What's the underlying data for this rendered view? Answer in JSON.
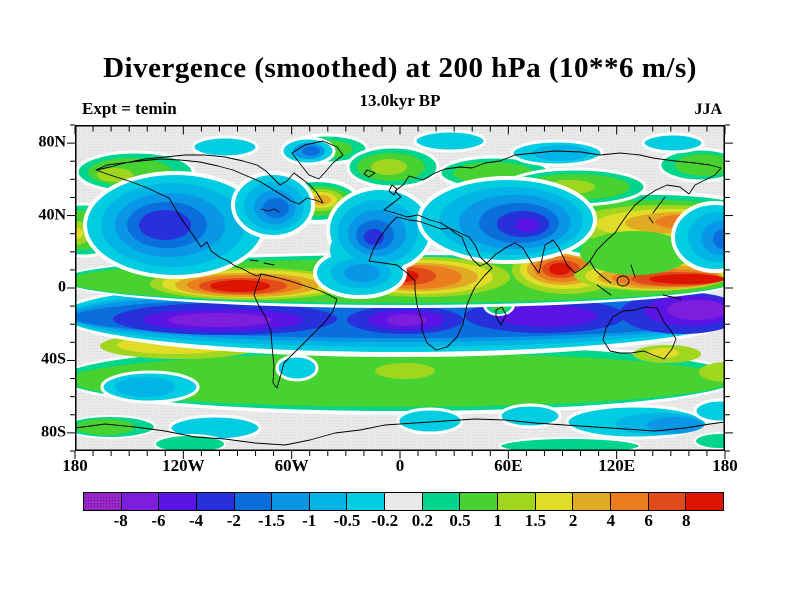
{
  "header": {
    "title": "Divergence (smoothed) at 200 hPa (10**6 m/s)",
    "subtitle": "13.0kyr BP",
    "experiment_label": "Expt = temin",
    "season_label": "JJA"
  },
  "axes": {
    "lon_labels": [
      "180",
      "120W",
      "60W",
      "0",
      "60E",
      "120E",
      "180"
    ],
    "lat_labels": [
      "80N",
      "40N",
      "0",
      "40S",
      "80S"
    ],
    "lat_label_values": [
      80,
      40,
      0,
      -40,
      -80
    ]
  },
  "colorbar": {
    "labels": [
      "-8",
      "-6",
      "-4",
      "-2",
      "-1.5",
      "-1",
      "-0.5",
      "-0.2",
      "0.2",
      "0.5",
      "1",
      "1.5",
      "2",
      "4",
      "6",
      "8"
    ],
    "colors": [
      "#9A28C8",
      "#7C1EDC",
      "#5A14E6",
      "#2830DC",
      "#0A6EDC",
      "#0A96E6",
      "#00B4E6",
      "#00CDE1",
      "#E8E8E8",
      "#00D58C",
      "#48D232",
      "#A0D71E",
      "#E1DC28",
      "#E1AA23",
      "#EB7D1E",
      "#E14B19",
      "#DC1400"
    ]
  },
  "chart_data": {
    "type": "heatmap",
    "subtype": "filled-contour world map",
    "title": "Divergence (smoothed) at 200 hPa (10**6 m/s)",
    "subtitle": "13.0kyr BP",
    "experiment": "temin",
    "season": "JJA",
    "variable": "divergence at 200 hPa",
    "units_note": "10**6 m/s",
    "level_boundaries": [
      -8,
      -6,
      -4,
      -2,
      -1.5,
      -1,
      -0.5,
      -0.2,
      0.2,
      0.5,
      1,
      1.5,
      2,
      4,
      6,
      8
    ],
    "palette": [
      "#9A28C8",
      "#7C1EDC",
      "#5A14E6",
      "#2830DC",
      "#0A6EDC",
      "#0A96E6",
      "#00B4E6",
      "#00CDE1",
      "#E8E8E8",
      "#00D58C",
      "#48D232",
      "#A0D71E",
      "#E1DC28",
      "#E1AA23",
      "#EB7D1E",
      "#E14B19",
      "#DC1400"
    ],
    "near_zero_band_color": "#E8E8E8",
    "lon_range": [
      -180,
      180
    ],
    "lat_range": [
      -90,
      90
    ],
    "lon_tick_labels": [
      "180",
      "120W",
      "60W",
      "0",
      "60E",
      "120E",
      "180"
    ],
    "lat_tick_labels": [
      "80N",
      "40N",
      "0",
      "40S",
      "80S"
    ],
    "grid": false,
    "legend_position": "horizontal colorbar below map",
    "major_centers": [
      {
        "sign": "positive",
        "region": "eastern tropical Pacific ITCZ",
        "approx_lon": -85,
        "approx_lat": 4,
        "peak_value": "> 8"
      },
      {
        "sign": "positive",
        "region": "equatorial West/Central Africa",
        "approx_lon": 8,
        "approx_lat": 7,
        "peak_value": "6 to 8"
      },
      {
        "sign": "positive",
        "region": "India / Bay of Bengal monsoon",
        "approx_lon": 85,
        "approx_lat": 12,
        "peak_value": "> 8"
      },
      {
        "sign": "positive",
        "region": "western North Pacific 10-15N band",
        "approx_lon": 150,
        "approx_lat": 12,
        "peak_value": "6 to 8"
      },
      {
        "sign": "positive",
        "region": "East Asia / Japan 30-40N band",
        "approx_lon": 135,
        "approx_lat": 35,
        "peak_value": "2 to 4"
      },
      {
        "sign": "positive",
        "region": "eastern North America / Newfoundland",
        "approx_lon": -58,
        "approx_lat": 48,
        "peak_value": "1.5 to 2"
      },
      {
        "sign": "positive",
        "region": "western United States",
        "approx_lon": -105,
        "approx_lat": 40,
        "peak_value": "1.5 to 2"
      },
      {
        "sign": "positive",
        "region": "subtropical South America",
        "approx_lon": -55,
        "approx_lat": -28,
        "peak_value": "2 to 4"
      },
      {
        "sign": "positive",
        "region": "Southern Hemisphere midlatitude band 25S-55S",
        "approx_lon": 0,
        "approx_lat": -40,
        "peak_value": "0.5 to 1.5"
      },
      {
        "sign": "negative",
        "region": "North Pacific",
        "approx_lon": -150,
        "approx_lat": 35,
        "peak_value": "-2 to -4"
      },
      {
        "sign": "negative",
        "region": "subtropical North Atlantic / Caribbean",
        "approx_lon": -45,
        "approx_lat": 30,
        "peak_value": "-2 to -4"
      },
      {
        "sign": "negative",
        "region": "Europe / Central Asia",
        "approx_lon": 65,
        "approx_lat": 35,
        "peak_value": "-4 to -6"
      },
      {
        "sign": "negative",
        "region": "South Pacific 5-20S",
        "approx_lon": -135,
        "approx_lat": -12,
        "peak_value": "-6 to -8"
      },
      {
        "sign": "negative",
        "region": "South Atlantic 5-15S",
        "approx_lon": -2,
        "approx_lat": -12,
        "peak_value": "-6 to -8"
      },
      {
        "sign": "negative",
        "region": "south Indian Ocean 5-20S",
        "approx_lon": 80,
        "approx_lat": -14,
        "peak_value": "-4 to -6"
      },
      {
        "sign": "negative",
        "region": "Coral Sea / northern Australia",
        "approx_lon": 155,
        "approx_lat": -12,
        "peak_value": "-6 to -8"
      },
      {
        "sign": "negative",
        "region": "Southern Ocean patches 55-70S",
        "approx_lon": 120,
        "approx_lat": -62,
        "peak_value": "-0.5 to -1"
      }
    ]
  }
}
